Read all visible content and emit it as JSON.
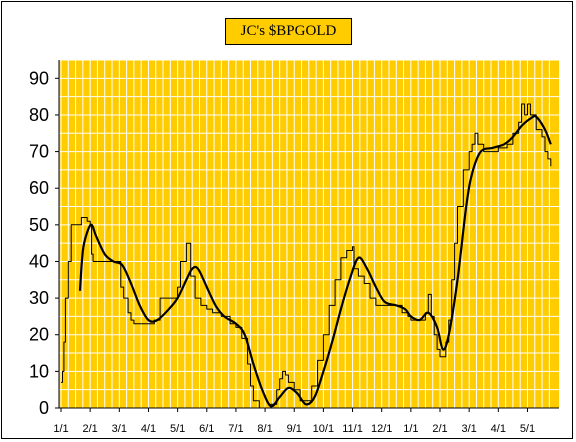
{
  "chart_data": {
    "type": "line",
    "title": "JC's $BPGOLD",
    "xlabel": "",
    "ylabel": "",
    "ylim": [
      0,
      95
    ],
    "yticks": [
      0,
      10,
      20,
      30,
      40,
      50,
      60,
      70,
      80,
      90
    ],
    "categories": [
      "1/1",
      "2/1",
      "3/1",
      "4/1",
      "5/1",
      "6/1",
      "7/1",
      "8/1",
      "9/1",
      "10/1",
      "11/1",
      "12/1",
      "1/1",
      "2/1",
      "3/1",
      "4/1",
      "5/1"
    ],
    "grid": true,
    "legend": "none",
    "colors": {
      "plot_background": "#ffcc00",
      "grid": "#ffffff",
      "line": "#000000"
    },
    "series": [
      {
        "style": "thin step",
        "points": [
          [
            0,
            7
          ],
          [
            0.05,
            10
          ],
          [
            0.1,
            18
          ],
          [
            0.15,
            30
          ],
          [
            0.25,
            40
          ],
          [
            0.35,
            50
          ],
          [
            0.55,
            50
          ],
          [
            0.7,
            52
          ],
          [
            0.9,
            51
          ],
          [
            1.0,
            50
          ],
          [
            1.05,
            42
          ],
          [
            1.1,
            40
          ],
          [
            1.5,
            40
          ],
          [
            2.0,
            40
          ],
          [
            2.05,
            33
          ],
          [
            2.15,
            30
          ],
          [
            2.3,
            26
          ],
          [
            2.4,
            24
          ],
          [
            2.5,
            23
          ],
          [
            3.0,
            23
          ],
          [
            3.2,
            24
          ],
          [
            3.4,
            30
          ],
          [
            3.6,
            30
          ],
          [
            3.8,
            30
          ],
          [
            4.0,
            33
          ],
          [
            4.1,
            40
          ],
          [
            4.2,
            40
          ],
          [
            4.3,
            45
          ],
          [
            4.45,
            36
          ],
          [
            4.6,
            30
          ],
          [
            4.8,
            28
          ],
          [
            5.0,
            27
          ],
          [
            5.2,
            26
          ],
          [
            5.5,
            25
          ],
          [
            5.8,
            23
          ],
          [
            6.0,
            22
          ],
          [
            6.2,
            19
          ],
          [
            6.4,
            12
          ],
          [
            6.5,
            6
          ],
          [
            6.6,
            2
          ],
          [
            6.8,
            0
          ],
          [
            7.0,
            0
          ],
          [
            7.2,
            1
          ],
          [
            7.4,
            5
          ],
          [
            7.5,
            8
          ],
          [
            7.6,
            10
          ],
          [
            7.7,
            9
          ],
          [
            7.8,
            7
          ],
          [
            8.0,
            5
          ],
          [
            8.2,
            2
          ],
          [
            8.4,
            2
          ],
          [
            8.6,
            6
          ],
          [
            8.8,
            13
          ],
          [
            9.0,
            20
          ],
          [
            9.2,
            28
          ],
          [
            9.4,
            35
          ],
          [
            9.6,
            41
          ],
          [
            9.8,
            43
          ],
          [
            10.0,
            44
          ],
          [
            10.05,
            38
          ],
          [
            10.2,
            36
          ],
          [
            10.4,
            34
          ],
          [
            10.6,
            30
          ],
          [
            10.8,
            28
          ],
          [
            11.0,
            28
          ],
          [
            11.5,
            28
          ],
          [
            11.7,
            26
          ],
          [
            11.9,
            25
          ],
          [
            12.0,
            24
          ],
          [
            12.3,
            24
          ],
          [
            12.5,
            26
          ],
          [
            12.6,
            31
          ],
          [
            12.7,
            25
          ],
          [
            12.8,
            20
          ],
          [
            12.9,
            16
          ],
          [
            13.0,
            14
          ],
          [
            13.2,
            18
          ],
          [
            13.3,
            24
          ],
          [
            13.4,
            35
          ],
          [
            13.5,
            45
          ],
          [
            13.6,
            55
          ],
          [
            13.8,
            65
          ],
          [
            14.0,
            70
          ],
          [
            14.1,
            72
          ],
          [
            14.2,
            75
          ],
          [
            14.3,
            72
          ],
          [
            14.5,
            70
          ],
          [
            14.8,
            70
          ],
          [
            15.0,
            71
          ],
          [
            15.3,
            72
          ],
          [
            15.5,
            75
          ],
          [
            15.7,
            78
          ],
          [
            15.8,
            83
          ],
          [
            15.9,
            80
          ],
          [
            16.0,
            83
          ],
          [
            16.1,
            80
          ],
          [
            16.3,
            76
          ],
          [
            16.5,
            74
          ],
          [
            16.6,
            70
          ],
          [
            16.7,
            68
          ],
          [
            16.8,
            66
          ]
        ]
      },
      {
        "style": "thick smooth",
        "points": [
          [
            0.65,
            32
          ],
          [
            0.75,
            43
          ],
          [
            0.9,
            48
          ],
          [
            1.05,
            50
          ],
          [
            1.2,
            47
          ],
          [
            1.5,
            42
          ],
          [
            1.8,
            40
          ],
          [
            2.1,
            39
          ],
          [
            2.4,
            34
          ],
          [
            2.7,
            28
          ],
          [
            3.0,
            24
          ],
          [
            3.3,
            24
          ],
          [
            3.7,
            27
          ],
          [
            4.0,
            30
          ],
          [
            4.3,
            35
          ],
          [
            4.5,
            38
          ],
          [
            4.7,
            38
          ],
          [
            5.0,
            33
          ],
          [
            5.3,
            28
          ],
          [
            5.6,
            25
          ],
          [
            6.0,
            23
          ],
          [
            6.3,
            20
          ],
          [
            6.6,
            12
          ],
          [
            6.9,
            5
          ],
          [
            7.2,
            0.5
          ],
          [
            7.5,
            3
          ],
          [
            7.8,
            5.5
          ],
          [
            8.1,
            4
          ],
          [
            8.4,
            1
          ],
          [
            8.7,
            3
          ],
          [
            9.0,
            10
          ],
          [
            9.3,
            18
          ],
          [
            9.6,
            27
          ],
          [
            9.9,
            35
          ],
          [
            10.2,
            41
          ],
          [
            10.5,
            38
          ],
          [
            10.8,
            33
          ],
          [
            11.1,
            29
          ],
          [
            11.5,
            28
          ],
          [
            11.8,
            27
          ],
          [
            12.0,
            25
          ],
          [
            12.3,
            24
          ],
          [
            12.6,
            26
          ],
          [
            12.9,
            22
          ],
          [
            13.1,
            16
          ],
          [
            13.3,
            20
          ],
          [
            13.6,
            35
          ],
          [
            13.9,
            55
          ],
          [
            14.1,
            64
          ],
          [
            14.4,
            70
          ],
          [
            14.8,
            71
          ],
          [
            15.2,
            72
          ],
          [
            15.5,
            74
          ],
          [
            15.8,
            77
          ],
          [
            16.1,
            79
          ],
          [
            16.3,
            79.5
          ],
          [
            16.6,
            76
          ],
          [
            16.8,
            72
          ]
        ]
      }
    ]
  }
}
